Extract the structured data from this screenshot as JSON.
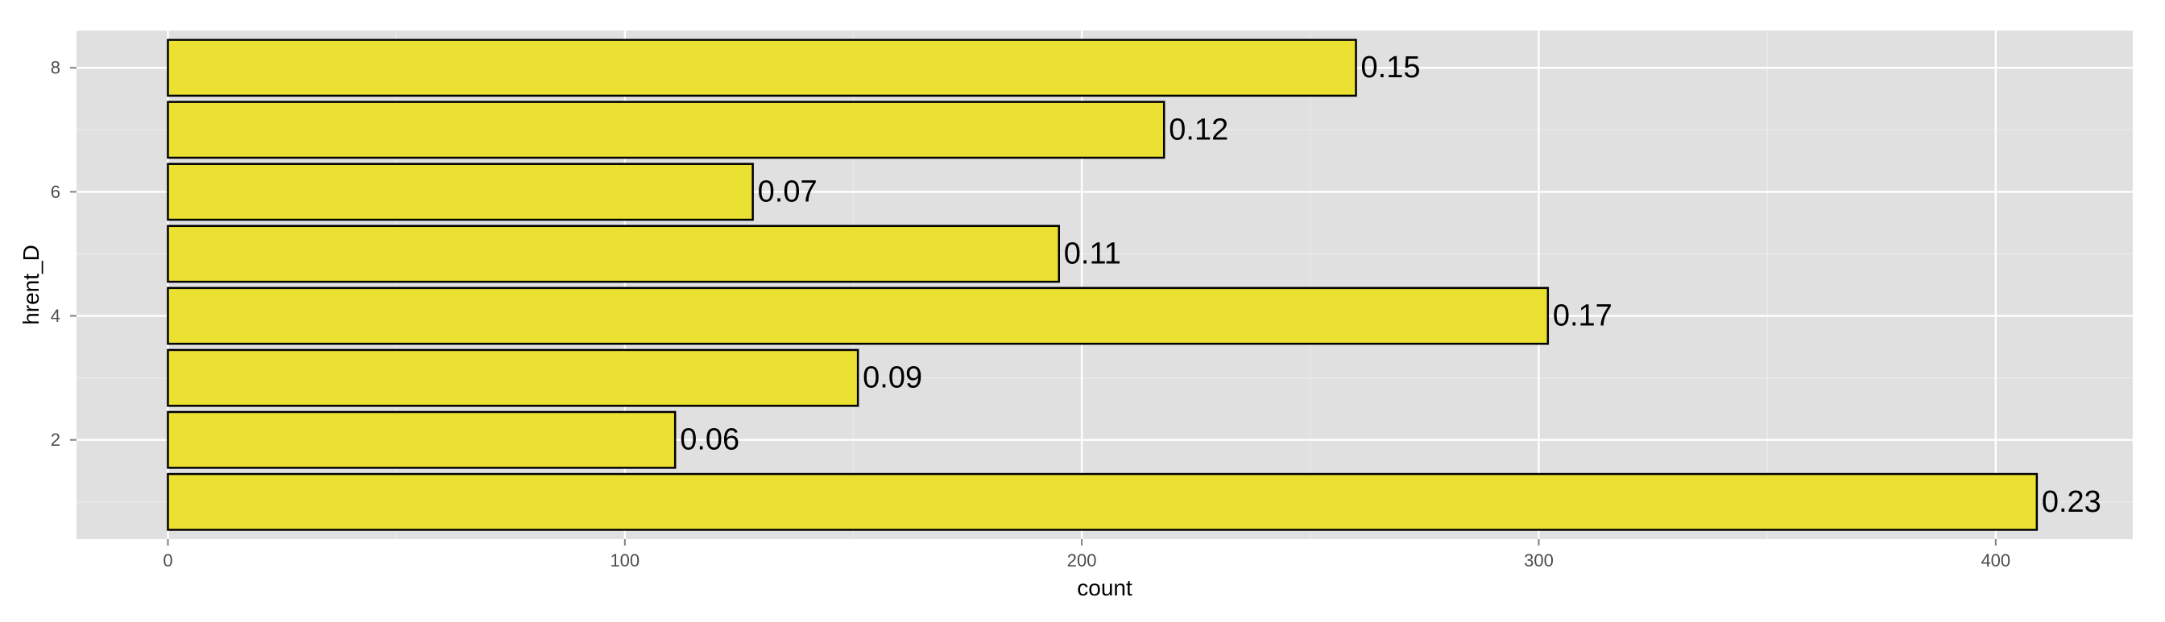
{
  "chart_data": {
    "type": "bar",
    "orientation": "horizontal",
    "title": "",
    "xlabel": "count",
    "ylabel": "hrent_D",
    "categories": [
      1,
      2,
      3,
      4,
      5,
      6,
      7,
      8
    ],
    "values": [
      409,
      111,
      151,
      302,
      195,
      128,
      218,
      260
    ],
    "data_labels": [
      "0.23",
      "0.06",
      "0.09",
      "0.17",
      "0.11",
      "0.07",
      "0.12",
      "0.15"
    ],
    "x_ticks": [
      0,
      100,
      200,
      300,
      400
    ],
    "y_ticks": [
      2,
      4,
      6,
      8
    ],
    "xlim": [
      -20,
      430
    ],
    "ylim": [
      0.4,
      8.6
    ],
    "grid": true,
    "legend": "none",
    "colors": {
      "bar_fill": "#ebe132",
      "bar_stroke": "#000000",
      "panel_background": "#e0e0e0",
      "grid_major": "#ffffff",
      "grid_minor": "#ebebeb",
      "tick_text": "#4d4d4d"
    }
  }
}
